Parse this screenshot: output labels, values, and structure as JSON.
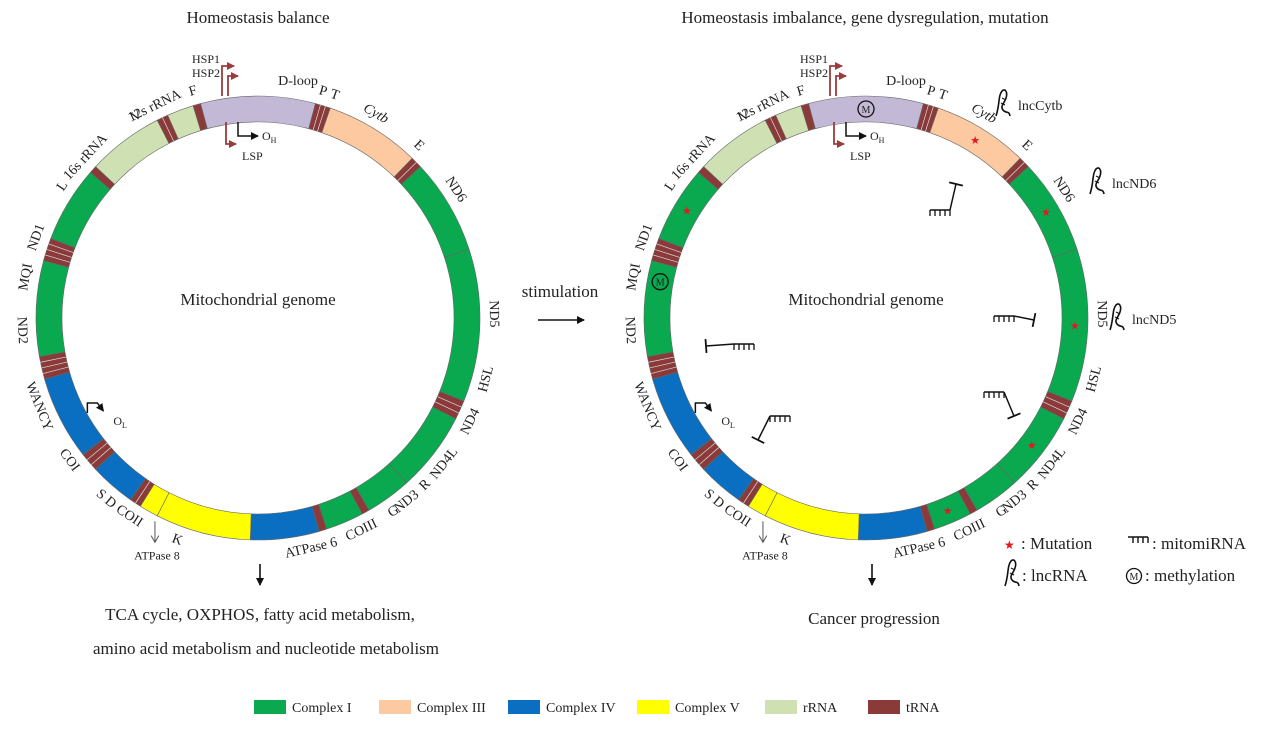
{
  "left_panel": {
    "title": "Homeostasis balance",
    "genome_label": "Mitochondrial genome",
    "outcome_line1": "TCA cycle, OXPHOS, fatty acid metabolism,",
    "outcome_line2": "amino acid metabolism and nucleotide metabolism"
  },
  "right_panel": {
    "title": "Homeostasis imbalance, gene dysregulation, mutation",
    "genome_label": "Mitochondrial genome",
    "outcome": "Cancer progression",
    "lnc_labels": [
      "lncCytb",
      "lncND6",
      "lncND5"
    ]
  },
  "arrow_label": "stimulation",
  "genes": {
    "dloop": "D-loop",
    "hsp1": "HSP1",
    "hsp2": "HSP2",
    "lsp": "LSP",
    "oh": "O",
    "oh_sub": "H",
    "ol": "O",
    "ol_sub": "L",
    "f": "F",
    "rrna12": "12s rRNA",
    "v": "V",
    "rrna16": "16s rRNA",
    "l": "L",
    "nd1": "ND1",
    "mqi": "MQI",
    "nd2": "ND2",
    "wancy": "WANCY",
    "coi": "COI",
    "sd": "S D",
    "coii": "COII",
    "k": "K",
    "atp8": "ATPase 8",
    "atp6": "ATPase 6",
    "coiii": "COIII",
    "g": "G",
    "nd3": "ND3",
    "r": "R",
    "nd4l": "ND4L",
    "nd4": "ND4",
    "hsl": "HSL",
    "nd5": "ND5",
    "nd6": "ND6",
    "e": "E",
    "cytb": "Cytb",
    "p": "P",
    "t": "T",
    "methyl": "M"
  },
  "key": {
    "mutation": ": Mutation",
    "mitomirna": ": mitomiRNA",
    "lncrna": ": lncRNA",
    "methylation": ": methylation"
  },
  "legend": [
    {
      "label": "Complex I",
      "color": "#0aa84f"
    },
    {
      "label": "Complex III",
      "color": "#fcc9a0"
    },
    {
      "label": "Complex IV",
      "color": "#0a6fc0"
    },
    {
      "label": "Complex V",
      "color": "#ffff00"
    },
    {
      "label": "rRNA",
      "color": "#cfe0b3"
    },
    {
      "label": "tRNA",
      "color": "#8b3a3a"
    }
  ],
  "colors": {
    "complex1": "#0aa84f",
    "complex3": "#fcc9a0",
    "complex4": "#0a6fc0",
    "complex5": "#ffff00",
    "rrna": "#cfe0b3",
    "trna": "#8b3a3a",
    "dloop": "#c3b8d6",
    "mutation": "#e8141e",
    "promoter": "#9a3c3c"
  }
}
